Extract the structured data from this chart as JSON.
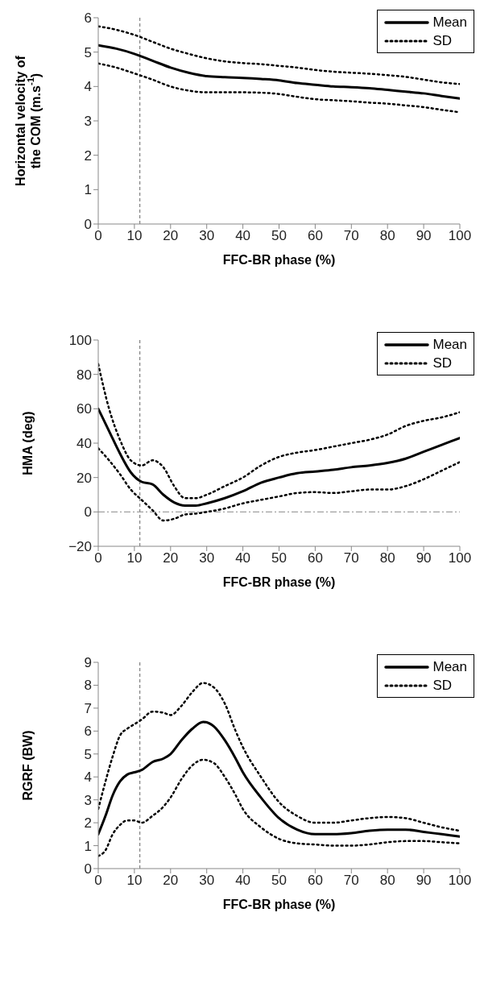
{
  "chart_data": [
    {
      "type": "line",
      "xlabel": "FFC-BR phase (%)",
      "ylabel": "Horizontal velocity of the COM (m.s$^{-1}$)",
      "x": [
        0,
        5,
        10,
        15,
        20,
        25,
        30,
        35,
        40,
        45,
        50,
        55,
        60,
        65,
        70,
        75,
        80,
        85,
        90,
        95,
        100
      ],
      "xlim": [
        0,
        100
      ],
      "xticks": [
        0,
        10,
        20,
        30,
        40,
        50,
        60,
        70,
        80,
        90,
        100
      ],
      "ylim": [
        0,
        6
      ],
      "yticks": [
        0,
        1,
        2,
        3,
        4,
        5,
        6
      ],
      "grid": false,
      "legend": "top right",
      "marker": "none",
      "series": [
        {
          "name": "Mean",
          "color": "#000000",
          "line_style": "solid",
          "values": [
            5.2,
            5.1,
            4.95,
            4.75,
            4.55,
            4.4,
            4.3,
            4.27,
            4.25,
            4.22,
            4.18,
            4.1,
            4.05,
            4.0,
            3.98,
            3.95,
            3.9,
            3.85,
            3.8,
            3.72,
            3.65
          ]
        },
        {
          "name": "SD",
          "color": "#000000",
          "line_style": "dotted",
          "values": [
            5.75,
            5.65,
            5.5,
            5.3,
            5.1,
            4.95,
            4.82,
            4.73,
            4.68,
            4.65,
            4.6,
            4.55,
            4.48,
            4.43,
            4.4,
            4.37,
            4.33,
            4.28,
            4.2,
            4.12,
            4.07
          ]
        },
        {
          "color": "#000000",
          "line_style": "dotted",
          "values": [
            4.67,
            4.55,
            4.38,
            4.2,
            4.0,
            3.88,
            3.83,
            3.83,
            3.83,
            3.82,
            3.78,
            3.7,
            3.63,
            3.6,
            3.57,
            3.53,
            3.5,
            3.45,
            3.4,
            3.32,
            3.25
          ]
        }
      ],
      "ref_lines": [
        {
          "axis": "x",
          "value": 11.5,
          "color": "#808080",
          "line_style": "dashed"
        }
      ]
    },
    {
      "type": "line",
      "xlabel": "FFC-BR phase (%)",
      "ylabel": "HMA (deg)",
      "x": [
        0,
        3,
        6,
        9,
        12,
        15,
        18,
        21,
        24,
        27,
        30,
        35,
        40,
        45,
        50,
        55,
        60,
        65,
        70,
        75,
        80,
        85,
        90,
        95,
        100
      ],
      "xlim": [
        0,
        100
      ],
      "xticks": [
        0,
        10,
        20,
        30,
        40,
        50,
        60,
        70,
        80,
        90,
        100
      ],
      "ylim": [
        -20,
        100
      ],
      "yticks": [
        {
          "value": -20,
          "label": "−20"
        },
        0,
        20,
        40,
        60,
        80,
        100
      ],
      "grid": false,
      "legend": "top right",
      "marker": "none",
      "series": [
        {
          "name": "Mean",
          "color": "#000000",
          "line_style": "solid",
          "values": [
            60,
            47,
            34,
            23,
            17.5,
            16,
            10,
            5.5,
            3.7,
            3.7,
            5,
            8,
            12,
            17,
            20,
            22.5,
            23.5,
            24.5,
            26,
            27,
            28.5,
            31,
            35,
            39,
            43
          ]
        },
        {
          "name": "SD",
          "color": "#000000",
          "line_style": "dotted",
          "values": [
            86,
            60,
            42,
            30,
            27,
            30,
            26,
            15,
            8,
            8,
            10,
            15,
            20,
            27,
            32,
            34.5,
            36,
            38,
            40,
            42,
            45,
            50,
            53,
            55,
            58
          ]
        },
        {
          "color": "#000000",
          "line_style": "dotted",
          "values": [
            37,
            30,
            22,
            13,
            7,
            1,
            -5,
            -4,
            -1.5,
            -1,
            0,
            2,
            5,
            7,
            9,
            11,
            11.5,
            11,
            12,
            13,
            13,
            15,
            19,
            24,
            29
          ]
        }
      ],
      "ref_lines": [
        {
          "axis": "x",
          "value": 11.5,
          "color": "#808080",
          "line_style": "dashed"
        },
        {
          "axis": "y",
          "value": 0,
          "color": "#a0a0a0",
          "line_style": "dashdot"
        }
      ]
    },
    {
      "type": "line",
      "xlabel": "FFC-BR phase (%)",
      "ylabel": "RGRF (BW)",
      "x": [
        0,
        2,
        4,
        6,
        8,
        10,
        12,
        15,
        18,
        20,
        23,
        26,
        29,
        32,
        35,
        38,
        40,
        45,
        50,
        55,
        60,
        65,
        70,
        75,
        80,
        85,
        90,
        95,
        100
      ],
      "xlim": [
        0,
        100
      ],
      "xticks": [
        0,
        10,
        20,
        30,
        40,
        50,
        60,
        70,
        80,
        90,
        100
      ],
      "ylim": [
        0,
        9
      ],
      "yticks": [
        0,
        1,
        2,
        3,
        4,
        5,
        6,
        7,
        8,
        9
      ],
      "grid": false,
      "legend": "top right",
      "marker": "none",
      "series": [
        {
          "name": "Mean",
          "color": "#000000",
          "line_style": "solid",
          "values": [
            1.5,
            2.3,
            3.2,
            3.8,
            4.1,
            4.2,
            4.3,
            4.65,
            4.8,
            5.0,
            5.6,
            6.1,
            6.4,
            6.2,
            5.6,
            4.8,
            4.2,
            3.1,
            2.2,
            1.7,
            1.5,
            1.5,
            1.55,
            1.65,
            1.7,
            1.7,
            1.6,
            1.5,
            1.4
          ]
        },
        {
          "name": "SD",
          "color": "#000000",
          "line_style": "dotted",
          "values": [
            2.6,
            3.8,
            4.9,
            5.8,
            6.1,
            6.3,
            6.5,
            6.85,
            6.8,
            6.7,
            7.1,
            7.7,
            8.1,
            7.9,
            7.2,
            6.0,
            5.3,
            4.0,
            2.9,
            2.3,
            2.0,
            2.0,
            2.1,
            2.2,
            2.25,
            2.2,
            2.0,
            1.8,
            1.65
          ]
        },
        {
          "color": "#000000",
          "line_style": "dotted",
          "values": [
            0.55,
            0.8,
            1.5,
            1.9,
            2.1,
            2.1,
            2.0,
            2.3,
            2.7,
            3.1,
            3.9,
            4.5,
            4.75,
            4.6,
            4.0,
            3.2,
            2.6,
            1.8,
            1.3,
            1.1,
            1.05,
            1.0,
            1.0,
            1.05,
            1.15,
            1.2,
            1.2,
            1.15,
            1.1
          ]
        }
      ],
      "ref_lines": [
        {
          "axis": "x",
          "value": 11.5,
          "color": "#808080",
          "line_style": "dashed"
        }
      ]
    }
  ]
}
